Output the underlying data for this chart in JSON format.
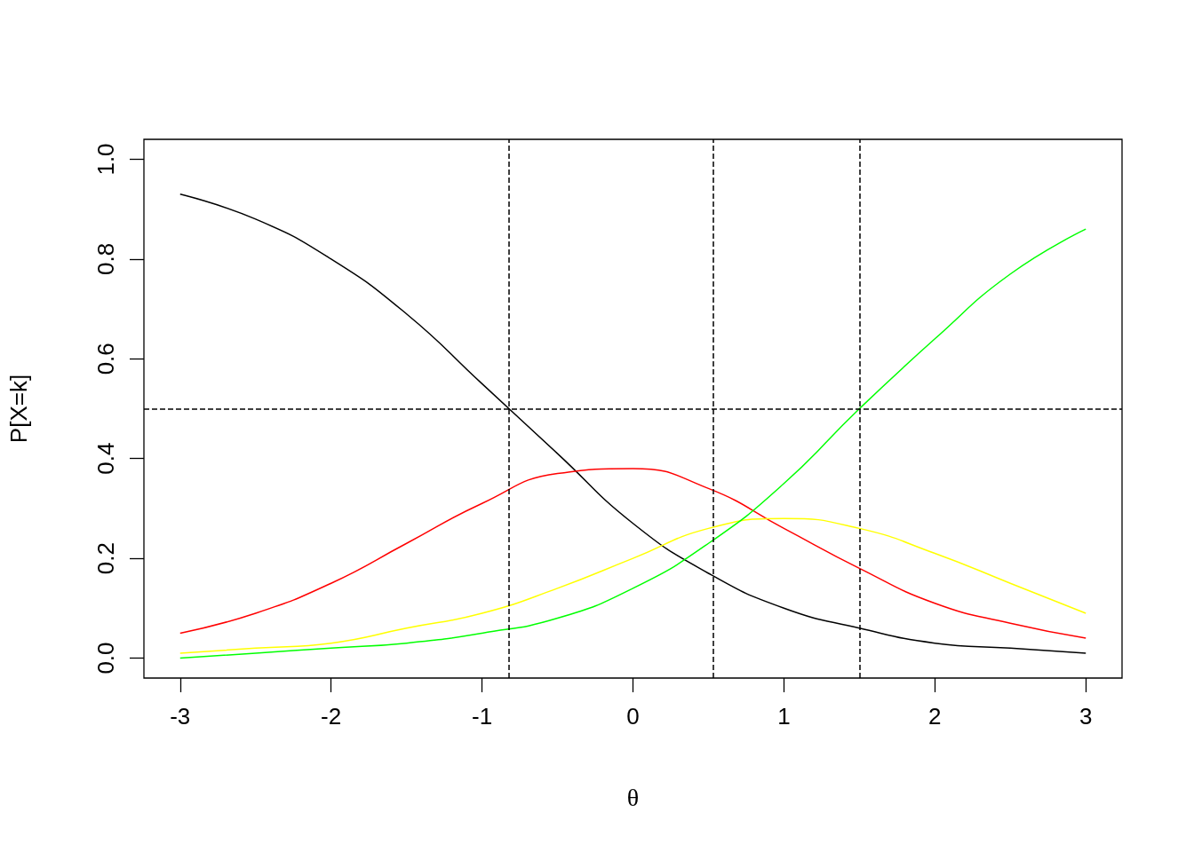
{
  "chart_data": {
    "type": "line",
    "xlabel": "θ",
    "ylabel": "P[X=k]",
    "x": [
      -3,
      -2.5,
      -2,
      -1.5,
      -1,
      -0.5,
      0,
      0.5,
      1,
      1.5,
      2,
      2.5,
      3
    ],
    "series": [
      {
        "color": "#000000",
        "values": [
          0.93,
          0.88,
          0.8,
          0.69,
          0.55,
          0.41,
          0.27,
          0.17,
          0.1,
          0.06,
          0.03,
          0.02,
          0.01
        ]
      },
      {
        "color": "#ff0000",
        "values": [
          0.05,
          0.09,
          0.15,
          0.23,
          0.31,
          0.37,
          0.38,
          0.34,
          0.26,
          0.18,
          0.11,
          0.07,
          0.04
        ]
      },
      {
        "color": "#ffff00",
        "values": [
          0.01,
          0.02,
          0.03,
          0.06,
          0.09,
          0.14,
          0.2,
          0.26,
          0.28,
          0.26,
          0.21,
          0.15,
          0.09
        ]
      },
      {
        "color": "#00ff00",
        "values": [
          0.0,
          0.01,
          0.02,
          0.03,
          0.05,
          0.08,
          0.14,
          0.23,
          0.35,
          0.5,
          0.64,
          0.77,
          0.86
        ]
      }
    ],
    "xlim": [
      -3.24,
      3.24
    ],
    "ylim": [
      -0.04,
      1.04
    ],
    "xticks": [
      -3,
      -2,
      -1,
      0,
      1,
      2,
      3
    ],
    "yticks": [
      {
        "value": 0,
        "label": "0.0"
      },
      {
        "value": 0.2,
        "label": "0.2"
      },
      {
        "value": 0.4,
        "label": "0.4"
      },
      {
        "value": 0.6,
        "label": "0.6"
      },
      {
        "value": 0.8,
        "label": "0.8"
      },
      {
        "value": 1,
        "label": "1.0"
      }
    ],
    "ref_lines": [
      {
        "axis": "x",
        "value": -0.82,
        "color": "#000000",
        "line_style": "dashed"
      },
      {
        "axis": "x",
        "value": 0.53,
        "color": "#000000",
        "line_style": "dashed"
      },
      {
        "axis": "x",
        "value": 1.5,
        "color": "#000000",
        "line_style": "dashed"
      },
      {
        "axis": "y",
        "value": 0.5,
        "color": "#000000",
        "line_style": "dashed"
      }
    ],
    "marker": "none",
    "line_style": "solid"
  }
}
